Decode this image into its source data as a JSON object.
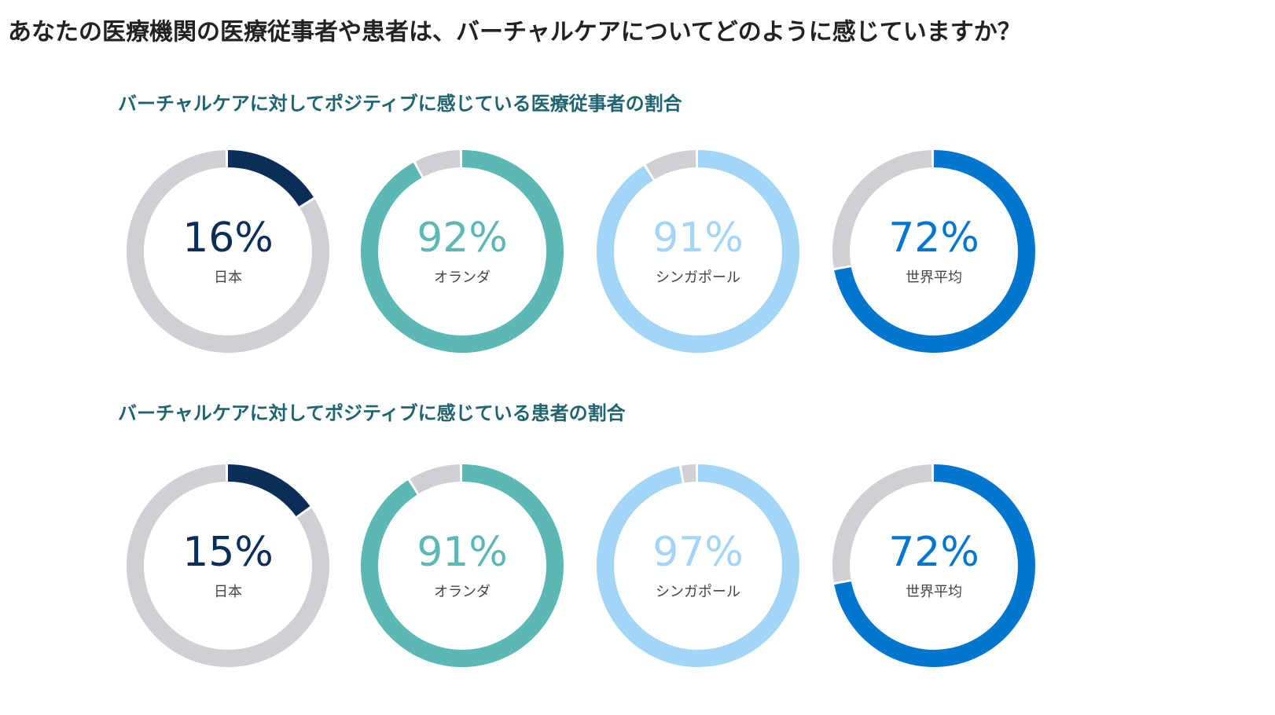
{
  "title": "あなたの医療機関の医療従事者や患者は、バーチャルケアについてどのように感じていますか？",
  "chart_data": [
    {
      "type": "donut",
      "title": "バーチャルケアに対してポジティブに感じている医療従事者の割合",
      "categories": [
        "日本",
        "オランダ",
        "シンガポール",
        "世界平均"
      ],
      "values": [
        16,
        92,
        91,
        72
      ],
      "value_labels": [
        "16%",
        "92%",
        "91%",
        "72%"
      ],
      "colors": [
        "#0b2e59",
        "#5bb8b4",
        "#a3d5f7",
        "#0076ce"
      ],
      "track_color": "#cfcfd6"
    },
    {
      "type": "donut",
      "title": "バーチャルケアに対してポジティブに感じている患者の割合",
      "categories": [
        "日本",
        "オランダ",
        "シンガポール",
        "世界平均"
      ],
      "values": [
        15,
        91,
        97,
        72
      ],
      "value_labels": [
        "15%",
        "91%",
        "97%",
        "72%"
      ],
      "colors": [
        "#0b2e59",
        "#5bb8b4",
        "#a3d5f7",
        "#0076ce"
      ],
      "track_color": "#cfcfd6"
    }
  ]
}
